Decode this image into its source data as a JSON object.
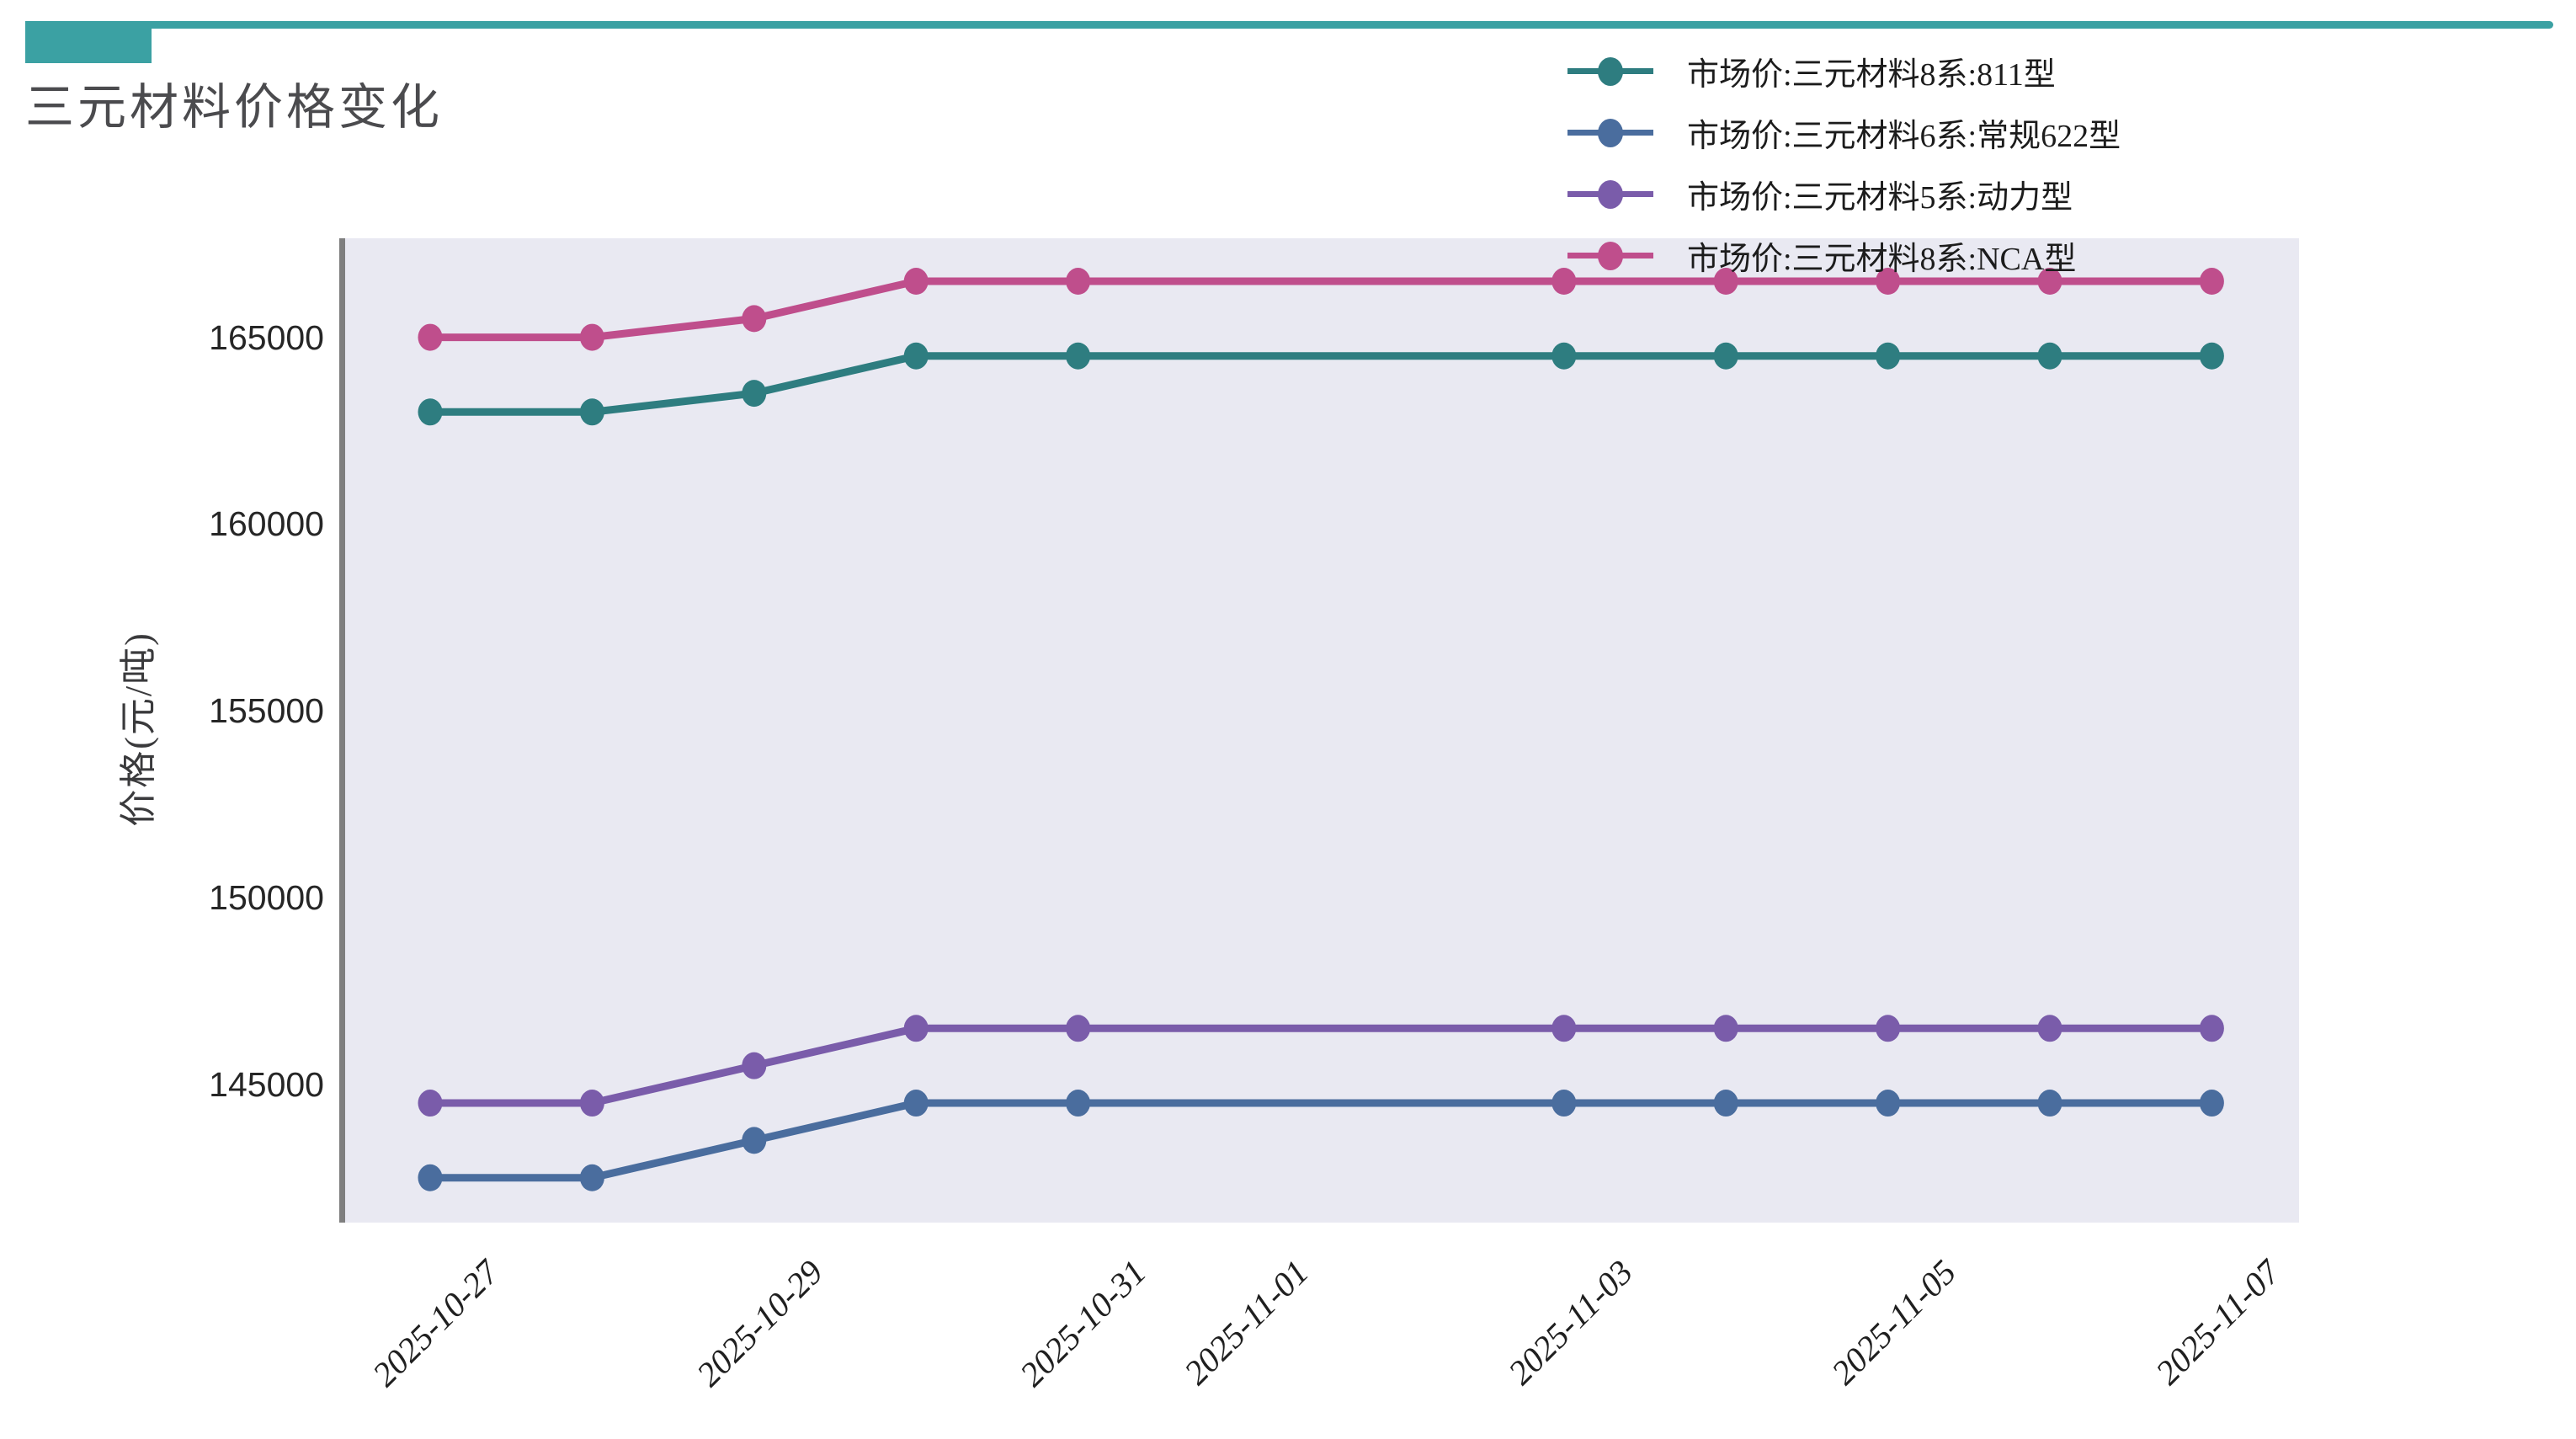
{
  "header": {
    "title": "三元材料价格变化",
    "accent_color": "#3ba1a3"
  },
  "axes": {
    "ylabel": "价格(元/吨)"
  },
  "chart_data": {
    "type": "line",
    "title": "三元材料价格变化",
    "xlabel": "",
    "ylabel": "价格(元/吨)",
    "x": [
      "2025-10-27",
      "2025-10-28",
      "2025-10-29",
      "2025-10-30",
      "2025-10-31",
      "2025-11-03",
      "2025-11-04",
      "2025-11-05",
      "2025-11-06",
      "2025-11-07"
    ],
    "series": [
      {
        "name": "市场价:三元材料8系:811型",
        "color": "#2e7d80",
        "values": [
          163000,
          163000,
          163500,
          164500,
          164500,
          164500,
          164500,
          164500,
          164500,
          164500
        ]
      },
      {
        "name": "市场价:三元材料6系:常规622型",
        "color": "#4a6d9e",
        "values": [
          142500,
          142500,
          143500,
          144500,
          144500,
          144500,
          144500,
          144500,
          144500,
          144500
        ]
      },
      {
        "name": "市场价:三元材料5系:动力型",
        "color": "#7a5caa",
        "values": [
          144500,
          144500,
          145500,
          146500,
          146500,
          146500,
          146500,
          146500,
          146500,
          146500
        ]
      },
      {
        "name": "市场价:三元材料8系:NCA型",
        "color": "#bf4e8c",
        "values": [
          165000,
          165000,
          165500,
          166500,
          166500,
          166500,
          166500,
          166500,
          166500,
          166500
        ]
      }
    ],
    "x_tick_labels": [
      "2025-10-27",
      "2025-10-29",
      "2025-10-31",
      "2025-11-01",
      "2025-11-03",
      "2025-11-05",
      "2025-11-07"
    ],
    "y_ticks": [
      145000,
      150000,
      155000,
      160000,
      165000
    ],
    "ylim": [
      141300,
      167650
    ],
    "grid": false,
    "legend_position": "top-right",
    "plot_background": "#e9e9f2",
    "spine_color": "#7f7f7f"
  }
}
